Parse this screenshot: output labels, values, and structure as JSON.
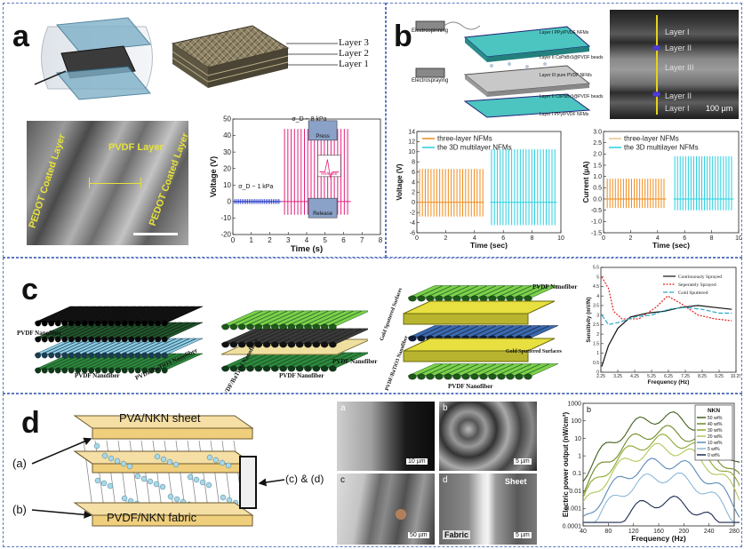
{
  "panels": {
    "a": {
      "label": "a",
      "layers": [
        "Layer 3",
        "Layer 2",
        "Layer 1"
      ],
      "sem_labels": {
        "left": "PEDOT Coated Layer",
        "middle": "PVDF Layer",
        "right": "PEDOT Coated Layer"
      },
      "plot": {
        "sigma_low": "σ_D ~ 1 kPa",
        "sigma_high": "σ_D ~ 8 kPa",
        "insets": [
          "Press",
          "Release",
          "Release"
        ],
        "xlabel": "Time (s)",
        "ylabel": "Voltage (V)",
        "xticks": [
          "0",
          "1",
          "2",
          "3",
          "4",
          "5",
          "6",
          "7",
          "8"
        ],
        "yticks": [
          "-20",
          "-10",
          "0",
          "10",
          "20",
          "30",
          "40",
          "50"
        ]
      }
    },
    "b": {
      "label": "b",
      "schematic_labels": [
        "Electrospinning",
        "Electrospraying",
        "Layer I PPy/PVDF NFMs",
        "Layer II CsPbBr3@PVDF beads",
        "Layer III pure PVDF NFMs",
        "Layer II CsPbBr3@PVDF beads",
        "Layer I PPy/PVDF NFMs"
      ],
      "sem_layers": [
        "Layer I",
        "Layer II",
        "Layer III",
        "Layer II",
        "Layer I"
      ],
      "scale_bar": "100 µm",
      "voltage_plot": {
        "legend": [
          "three-layer NFMs",
          "the 3D multilayer NFMs"
        ],
        "xlabel": "Time (sec)",
        "ylabel": "Voltage (V)",
        "xticks": [
          "0",
          "2",
          "4",
          "6",
          "8",
          "10"
        ],
        "yticks": [
          "-6",
          "-4",
          "-2",
          "0",
          "2",
          "4",
          "6",
          "8",
          "10",
          "12",
          "14"
        ]
      },
      "current_plot": {
        "legend": [
          "three-layer NFMs",
          "the 3D multilayer NFMs"
        ],
        "xlabel": "Time (sec)",
        "ylabel": "Current (µA)",
        "xticks": [
          "0",
          "2",
          "4",
          "6",
          "8",
          "10"
        ],
        "yticks": [
          "-1.5",
          "-1.0",
          "-0.5",
          "0.0",
          "0.5",
          "1.0",
          "1.5",
          "2.0",
          "2.5",
          "3.0"
        ]
      }
    },
    "c": {
      "label": "c",
      "diagram1": [
        "PVDF Nanofiber",
        "PVDF Nanofiber",
        "PVDF/BaTiO3 Nanofiber"
      ],
      "diagram2": [
        "PVDF/BaTiO3 Nanofiber",
        "PVDF Nanofiber",
        "PVDF Nanofiber"
      ],
      "diagram3": [
        "Gold Sputtered Surfaces",
        "PVDF Nanofiber",
        "PVDF/BaTiO3 Nanofiber",
        "Gold Sputtered Surfaces",
        "PVDF Nanofiber"
      ],
      "plot": {
        "legend": [
          "Continuously Sprayed",
          "Seperately Sprayed",
          "Gold Sputtered"
        ],
        "xlabel": "Frequency (Hz)",
        "ylabel": "Sensitivity (mV/N)",
        "xticks": [
          "2.25",
          "3.25",
          "4.25",
          "5.25",
          "6.25",
          "7.25",
          "8.25",
          "9.25",
          "10.25"
        ],
        "yticks": [
          "0",
          "0.5",
          "1",
          "1.5",
          "2",
          "2.5",
          "3",
          "3.5",
          "4",
          "4.5",
          "5",
          "5.5"
        ]
      }
    },
    "d": {
      "label": "d",
      "sheet": "PVA/NKN sheet",
      "fabric": "PVDF/NKN fabric",
      "callouts": [
        "(a)",
        "(b)",
        "(c) & (d)"
      ],
      "sem": [
        {
          "letter": "a",
          "scale": "10 µm"
        },
        {
          "letter": "b",
          "scale": "5 µm"
        },
        {
          "letter": "c",
          "scale": "50 µm"
        },
        {
          "letter": "d",
          "scale": "5 µm",
          "extra": [
            "Sheet",
            "Fabric"
          ]
        }
      ],
      "plot": {
        "letter": "b",
        "legend_title": "NKN",
        "legend": [
          "50 wt%",
          "40 wt%",
          "30 wt%",
          "20 wt%",
          "10 wt%",
          "5 wt%",
          "0 wt%"
        ],
        "xlabel": "Frequency (Hz)",
        "ylabel": "Electric power output (nW/cm²)",
        "xticks": [
          "40",
          "80",
          "120",
          "160",
          "200",
          "240",
          "280"
        ],
        "yticks": [
          "0.0001",
          "0.001",
          "0.01",
          "0.1",
          "1",
          "10",
          "100",
          "1000"
        ]
      }
    }
  }
}
